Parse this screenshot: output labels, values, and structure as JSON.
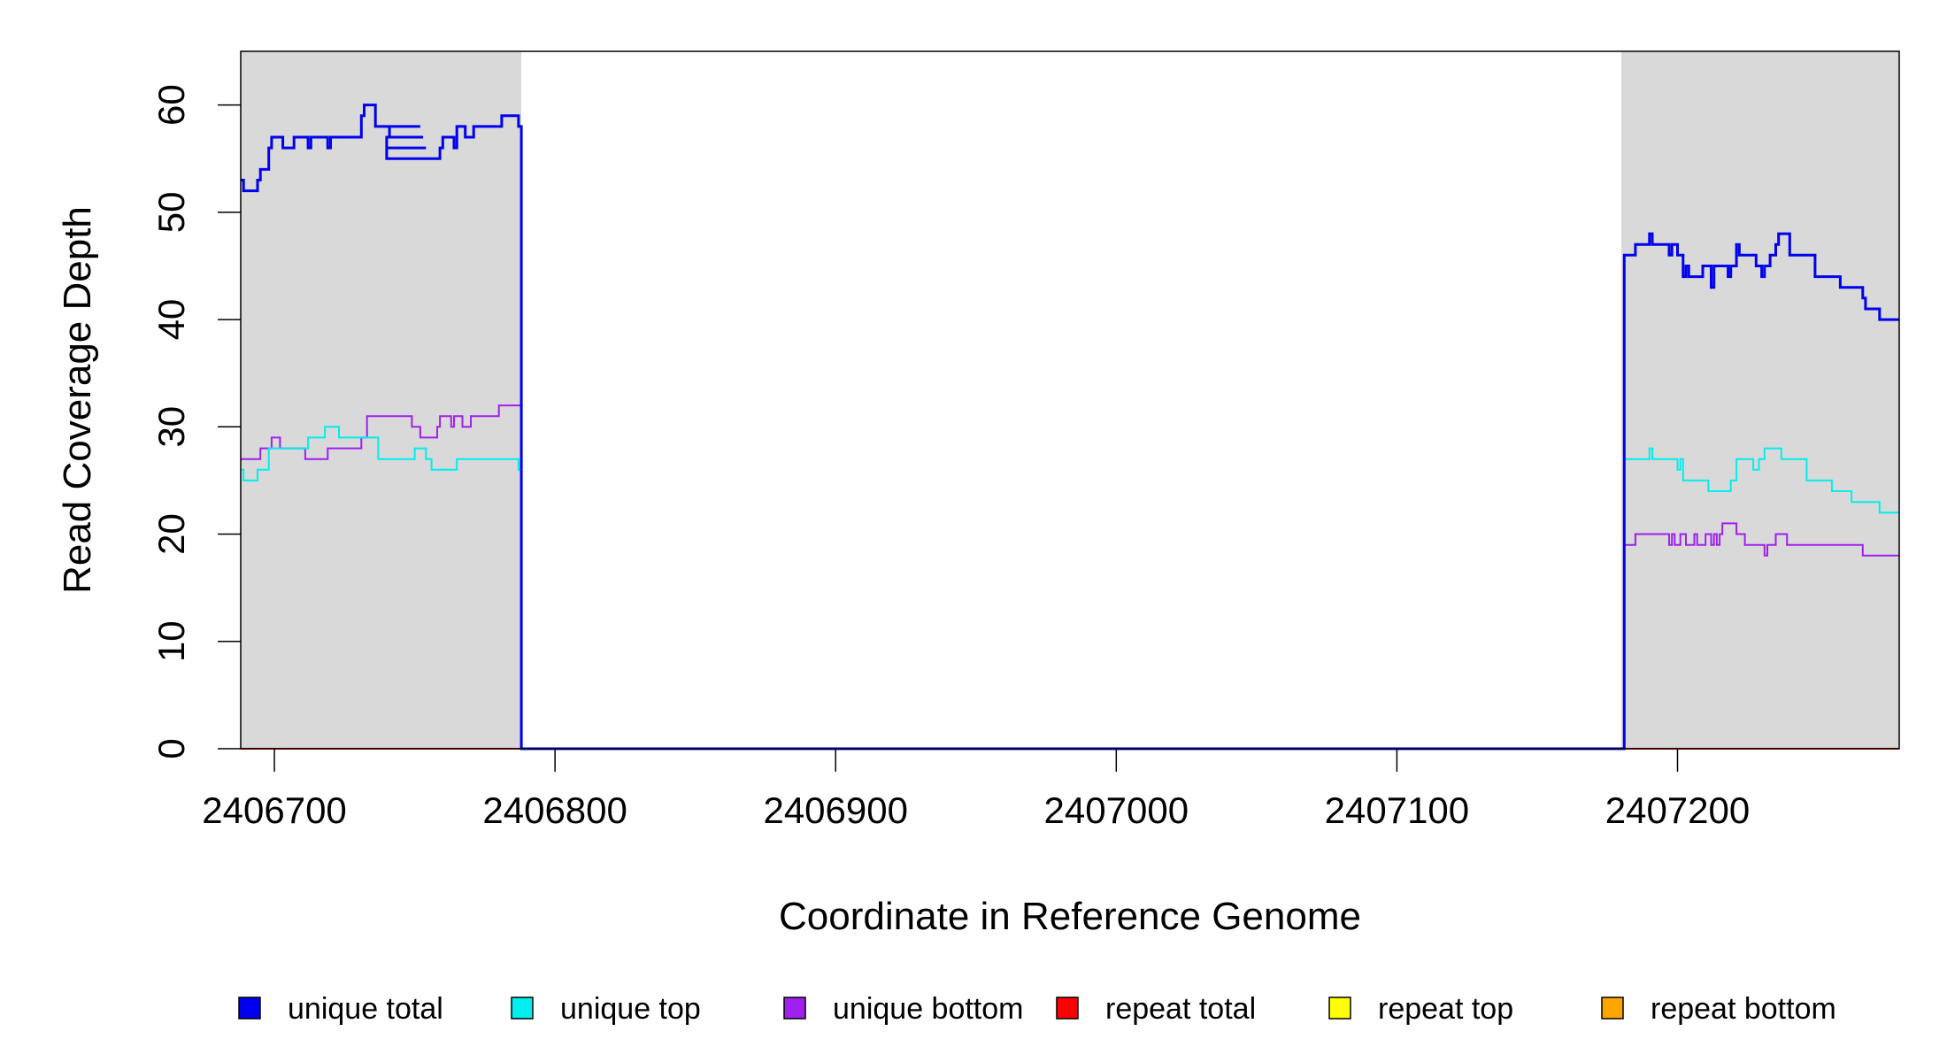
{
  "chart_data": {
    "type": "line",
    "xlabel": "Coordinate in Reference Genome",
    "ylabel": "Read Coverage Depth",
    "xlim": [
      2406688,
      2407279
    ],
    "ylim": [
      0,
      65
    ],
    "x_ticks": [
      2406700,
      2406800,
      2406900,
      2407000,
      2407100,
      2407200
    ],
    "x_tick_labels": [
      "2406700",
      "2406800",
      "2406900",
      "2407000",
      "2407100",
      "2407200"
    ],
    "y_ticks": [
      0,
      10,
      20,
      30,
      40,
      50,
      60
    ],
    "y_tick_labels": [
      "0",
      "10",
      "20",
      "30",
      "40",
      "50",
      "60"
    ],
    "grid": false,
    "shaded_regions": [
      {
        "x_start": 2406688,
        "x_end": 2406788,
        "color": "#d9d9d9"
      },
      {
        "x_start": 2407180,
        "x_end": 2407279,
        "color": "#d9d9d9"
      }
    ],
    "series": [
      {
        "name": "unique total",
        "color": "#0000ee",
        "points": [
          [
            2406688,
            53
          ],
          [
            2406689,
            52
          ],
          [
            2406694,
            53
          ],
          [
            2406695,
            54
          ],
          [
            2406698,
            56
          ],
          [
            2406699,
            57
          ],
          [
            2406703,
            56
          ],
          [
            2406707,
            57
          ],
          [
            2406712,
            56
          ],
          [
            2406713,
            57
          ],
          [
            2406719,
            56
          ],
          [
            2406720,
            57
          ],
          [
            2406731,
            59
          ],
          [
            2406732,
            60
          ],
          [
            2406736,
            58
          ],
          [
            2406740,
            58
          ],
          [
            2406740,
            58
          ],
          [
            2406741,
            58
          ],
          [
            2406748,
            58
          ],
          [
            2406740,
            58
          ],
          [
            2406747,
            58
          ],
          [
            2406748,
            58
          ],
          [
            2406740,
            58
          ],
          [
            2406740,
            58
          ],
          [
            2406740,
            58
          ],
          [
            2406740,
            58
          ],
          [
            2406740,
            58
          ],
          [
            2406740,
            58
          ],
          [
            2406740,
            58
          ],
          [
            2406740,
            58
          ],
          [
            2406740,
            58
          ],
          [
            2406740,
            58
          ],
          [
            2406740,
            58
          ],
          [
            2406740,
            58
          ],
          [
            2406752,
            58
          ],
          [
            2406741,
            57
          ],
          [
            2406753,
            57
          ],
          [
            2406740,
            56
          ],
          [
            2406754,
            56
          ],
          [
            2406740,
            55
          ],
          [
            2406740,
            55
          ],
          [
            2406740,
            55
          ],
          [
            2406740,
            55
          ],
          [
            2406740,
            55
          ],
          [
            2406740,
            55
          ],
          [
            2406740,
            55
          ],
          [
            2406740,
            55
          ],
          [
            2406740,
            55
          ],
          [
            2406740,
            55
          ],
          [
            2406740,
            55
          ],
          [
            2406740,
            55
          ],
          [
            2406756,
            55
          ],
          [
            2406759,
            56
          ],
          [
            2406760,
            57
          ],
          [
            2406764,
            56
          ],
          [
            2406765,
            58
          ],
          [
            2406768,
            57
          ],
          [
            2406771,
            58
          ],
          [
            2406781,
            59
          ],
          [
            2406786,
            59
          ],
          [
            2406787,
            58
          ],
          [
            2406788,
            0
          ],
          [
            2407180,
            0
          ],
          [
            2407181,
            46
          ],
          [
            2407185,
            47
          ],
          [
            2407190,
            48
          ],
          [
            2407191,
            47
          ],
          [
            2407197,
            46
          ],
          [
            2407198,
            47
          ],
          [
            2407200,
            46
          ],
          [
            2407202,
            44
          ],
          [
            2407203,
            45
          ],
          [
            2407204,
            44
          ],
          [
            2407209,
            45
          ],
          [
            2407212,
            43
          ],
          [
            2407213,
            45
          ],
          [
            2407218,
            44
          ],
          [
            2407219,
            45
          ],
          [
            2407221,
            47
          ],
          [
            2407222,
            46
          ],
          [
            2407228,
            45
          ],
          [
            2407230,
            44
          ],
          [
            2407231,
            45
          ],
          [
            2407233,
            46
          ],
          [
            2407235,
            47
          ],
          [
            2407236,
            48
          ],
          [
            2407240,
            46
          ],
          [
            2407249,
            44
          ],
          [
            2407258,
            43
          ],
          [
            2407266,
            42
          ],
          [
            2407267,
            41
          ],
          [
            2407272,
            40
          ],
          [
            2407279,
            40
          ]
        ]
      },
      {
        "name": "unique top",
        "color": "#00eeee",
        "points": [
          [
            2406688,
            26
          ],
          [
            2406689,
            25
          ],
          [
            2406694,
            26
          ],
          [
            2406698,
            28
          ],
          [
            2406703,
            28
          ],
          [
            2406712,
            29
          ],
          [
            2406718,
            30
          ],
          [
            2406723,
            29
          ],
          [
            2406733,
            29
          ],
          [
            2406737,
            27
          ],
          [
            2406750,
            28
          ],
          [
            2406754,
            27
          ],
          [
            2406756,
            26
          ],
          [
            2406765,
            27
          ],
          [
            2406787,
            27
          ],
          [
            2406787,
            26
          ],
          [
            2406788,
            0
          ],
          [
            2407180,
            0
          ],
          [
            2407181,
            27
          ],
          [
            2407190,
            28
          ],
          [
            2407191,
            27
          ],
          [
            2407200,
            26
          ],
          [
            2407201,
            27
          ],
          [
            2407202,
            25
          ],
          [
            2407211,
            24
          ],
          [
            2407219,
            25
          ],
          [
            2407221,
            27
          ],
          [
            2407227,
            26
          ],
          [
            2407229,
            27
          ],
          [
            2407231,
            28
          ],
          [
            2407237,
            27
          ],
          [
            2407246,
            25
          ],
          [
            2407255,
            24
          ],
          [
            2407262,
            23
          ],
          [
            2407272,
            22
          ],
          [
            2407279,
            22
          ]
        ]
      },
      {
        "name": "unique bottom",
        "color": "#a020f0",
        "points": [
          [
            2406688,
            27
          ],
          [
            2406695,
            28
          ],
          [
            2406699,
            29
          ],
          [
            2406702,
            28
          ],
          [
            2406711,
            27
          ],
          [
            2406719,
            28
          ],
          [
            2406731,
            29
          ],
          [
            2406733,
            31
          ],
          [
            2406749,
            30
          ],
          [
            2406752,
            29
          ],
          [
            2406758,
            30
          ],
          [
            2406759,
            31
          ],
          [
            2406763,
            30
          ],
          [
            2406764,
            31
          ],
          [
            2406767,
            30
          ],
          [
            2406770,
            31
          ],
          [
            2406780,
            32
          ],
          [
            2406787,
            32
          ],
          [
            2406788,
            0
          ],
          [
            2407180,
            0
          ],
          [
            2407181,
            19
          ],
          [
            2407185,
            20
          ],
          [
            2407197,
            19
          ],
          [
            2407198,
            20
          ],
          [
            2407199,
            19
          ],
          [
            2407200,
            19
          ],
          [
            2407201,
            20
          ],
          [
            2407203,
            19
          ],
          [
            2407206,
            20
          ],
          [
            2407207,
            19
          ],
          [
            2407210,
            20
          ],
          [
            2407212,
            19
          ],
          [
            2407213,
            20
          ],
          [
            2407214,
            19
          ],
          [
            2407215,
            20
          ],
          [
            2407216,
            21
          ],
          [
            2407221,
            20
          ],
          [
            2407224,
            19
          ],
          [
            2407231,
            18
          ],
          [
            2407232,
            19
          ],
          [
            2407235,
            20
          ],
          [
            2407239,
            19
          ],
          [
            2407266,
            18
          ],
          [
            2407279,
            18
          ]
        ]
      },
      {
        "name": "repeat total",
        "color": "#ff0000",
        "points": [
          [
            2406688,
            0
          ],
          [
            2407279,
            0
          ]
        ]
      },
      {
        "name": "repeat top",
        "color": "#ffff00",
        "points": [
          [
            2406688,
            0
          ],
          [
            2407279,
            0
          ]
        ]
      },
      {
        "name": "repeat bottom",
        "color": "#ffa500",
        "points": [
          [
            2406688,
            0
          ],
          [
            2407279,
            0
          ]
        ]
      }
    ],
    "legend": {
      "position": "bottom",
      "entries": [
        {
          "label": "unique total",
          "color": "#0000ee"
        },
        {
          "label": "unique top",
          "color": "#00eeee"
        },
        {
          "label": "unique bottom",
          "color": "#a020f0"
        },
        {
          "label": "repeat total",
          "color": "#ff0000"
        },
        {
          "label": "repeat top",
          "color": "#ffff00"
        },
        {
          "label": "repeat bottom",
          "color": "#ffa500"
        }
      ]
    }
  }
}
